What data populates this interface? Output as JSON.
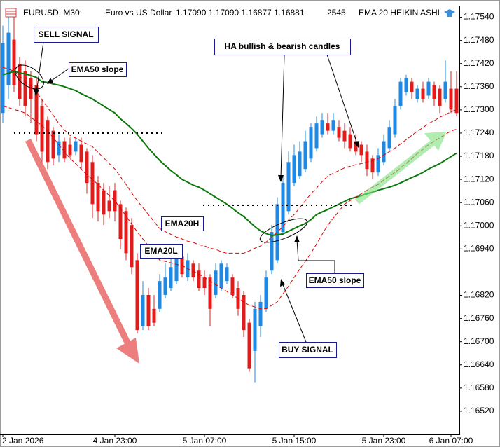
{
  "chart_data": {
    "type": "candlestick",
    "title": "EMA 20 HEIKIN ASHI",
    "symbol": "EURUSD, M30:",
    "description": "Euro vs US Dollar",
    "quote": "1.17090 1.17090 1.16877 1.16881",
    "bars": 2545,
    "up_color": "#1e88e5",
    "down_color": "#e31b1b",
    "grid": false,
    "ylim": [
      1.1646,
      1.1757
    ],
    "yticks": [
      {
        "value": 1.1754,
        "label": "1.17540"
      },
      {
        "value": 1.1748,
        "label": "1.17480"
      },
      {
        "value": 1.1742,
        "label": "1.17420"
      },
      {
        "value": 1.1736,
        "label": "1.17360"
      },
      {
        "value": 1.173,
        "label": "1.17300"
      },
      {
        "value": 1.1724,
        "label": "1.17240"
      },
      {
        "value": 1.1718,
        "label": "1.17180"
      },
      {
        "value": 1.1712,
        "label": "1.17120"
      },
      {
        "value": 1.1706,
        "label": "1.17060"
      },
      {
        "value": 1.17,
        "label": "1.17000"
      },
      {
        "value": 1.1694,
        "label": "1.16940"
      },
      {
        "value": 1.1682,
        "label": "1.16820"
      },
      {
        "value": 1.1676,
        "label": "1.16760"
      },
      {
        "value": 1.167,
        "label": "1.16700"
      },
      {
        "value": 1.1664,
        "label": "1.16640"
      },
      {
        "value": 1.1658,
        "label": "1.16580"
      },
      {
        "value": 1.1652,
        "label": "1.16520"
      }
    ],
    "categories": [
      "2 Jan 2026",
      null,
      null,
      null,
      null,
      null,
      null,
      null,
      null,
      null,
      null,
      null,
      null,
      null,
      null,
      null,
      null,
      null,
      null,
      null,
      "4 Jan 23:00",
      null,
      null,
      null,
      null,
      null,
      null,
      null,
      null,
      null,
      null,
      null,
      null,
      null,
      null,
      null,
      "5 Jan 07:00",
      null,
      null,
      null,
      null,
      null,
      null,
      null,
      null,
      null,
      null,
      null,
      null,
      null,
      null,
      null,
      "5 Jan 15:00",
      null,
      null,
      null,
      null,
      null,
      null,
      null,
      null,
      null,
      null,
      null,
      null,
      null,
      null,
      null,
      "5 Jan 23:00",
      null,
      null,
      null,
      null,
      null,
      null,
      null,
      null,
      null,
      null,
      null,
      "6 Jan 07:00",
      null
    ],
    "open": [
      1.17292,
      1.17364,
      1.17482,
      1.17419,
      1.174,
      1.17382,
      1.17364,
      1.1731,
      1.17274,
      1.17246,
      1.17183,
      1.17219,
      1.1721,
      1.17192,
      1.1721,
      1.17192,
      1.17165,
      1.17111,
      1.17092,
      1.17065,
      1.17092,
      1.17056,
      1.17038,
      1.17002,
      1.16911,
      1.1674,
      1.16821,
      1.16785,
      1.16785,
      1.16821,
      1.16839,
      1.16857,
      1.1692,
      1.16866,
      1.16902,
      1.16884,
      1.16866,
      1.16866,
      1.16821,
      1.16839,
      1.16857,
      1.16866,
      1.16839,
      1.16821,
      1.16749,
      1.16676,
      1.1674,
      1.16785,
      1.16884,
      1.16911,
      1.16984,
      1.17038,
      1.17111,
      1.17129,
      1.17147,
      1.17174,
      1.17201,
      1.17237,
      1.17265,
      1.17246,
      1.17256,
      1.17246,
      1.17237,
      1.17219,
      1.1721,
      1.17192,
      1.17174,
      1.17138,
      1.17165,
      1.17201,
      1.17237,
      1.1731,
      1.17346,
      1.17373,
      1.17328,
      1.17355,
      1.17337,
      1.17364,
      1.17355,
      1.17328,
      1.17355,
      1.17355
    ],
    "high": [
      1.17518,
      1.17554,
      1.17554,
      1.17437,
      1.17428,
      1.174,
      1.17382,
      1.17328,
      1.17283,
      1.17256,
      1.17237,
      1.17228,
      1.17228,
      1.17228,
      1.17228,
      1.17201,
      1.17183,
      1.17129,
      1.17111,
      1.17102,
      1.17111,
      1.17065,
      1.17047,
      1.1702,
      1.16929,
      1.16857,
      1.16839,
      1.16821,
      1.16875,
      1.16902,
      1.1692,
      1.16939,
      1.16929,
      1.16929,
      1.16911,
      1.16902,
      1.16884,
      1.16875,
      1.16902,
      1.16911,
      1.16902,
      1.16875,
      1.16857,
      1.1683,
      1.16758,
      1.16803,
      1.16821,
      1.16884,
      1.17002,
      1.17074,
      1.17129,
      1.17192,
      1.1721,
      1.17219,
      1.17246,
      1.17265,
      1.17283,
      1.17292,
      1.17292,
      1.17292,
      1.17274,
      1.17265,
      1.17256,
      1.17237,
      1.17219,
      1.1721,
      1.17183,
      1.17201,
      1.17237,
      1.17274,
      1.17328,
      1.17382,
      1.17391,
      1.17382,
      1.17364,
      1.17373,
      1.17382,
      1.17373,
      1.17364,
      1.17428,
      1.174,
      1.174
    ],
    "low": [
      1.17265,
      1.17328,
      1.17346,
      1.1731,
      1.17283,
      1.17265,
      1.17219,
      1.17165,
      1.17147,
      1.17156,
      1.17165,
      1.17165,
      1.17174,
      1.17183,
      1.17147,
      1.17083,
      1.1702,
      1.17011,
      1.17002,
      1.1702,
      1.17011,
      1.16939,
      1.16911,
      1.16875,
      1.16721,
      1.1673,
      1.1673,
      1.1674,
      1.16776,
      1.16812,
      1.1683,
      1.16848,
      1.16866,
      1.16857,
      1.16857,
      1.1683,
      1.16821,
      1.1674,
      1.16812,
      1.1683,
      1.16848,
      1.16812,
      1.16767,
      1.16712,
      1.16622,
      1.16595,
      1.16712,
      1.16776,
      1.16875,
      1.16902,
      1.16975,
      1.17029,
      1.17102,
      1.1712,
      1.17138,
      1.17165,
      1.17192,
      1.17228,
      1.17237,
      1.17237,
      1.17219,
      1.17201,
      1.17192,
      1.17183,
      1.17165,
      1.17129,
      1.1712,
      1.17129,
      1.17156,
      1.17192,
      1.17228,
      1.17301,
      1.17337,
      1.17328,
      1.17319,
      1.17319,
      1.17328,
      1.1731,
      1.17292,
      1.17319,
      1.17292,
      1.17283
    ],
    "close": [
      1.17473,
      1.175,
      1.17364,
      1.17328,
      1.1731,
      1.17328,
      1.17237,
      1.17192,
      1.17165,
      1.17174,
      1.17219,
      1.17174,
      1.17183,
      1.17219,
      1.17165,
      1.17111,
      1.17056,
      1.17038,
      1.17029,
      1.17038,
      1.17038,
      1.16966,
      1.16929,
      1.16893,
      1.1673,
      1.16821,
      1.1674,
      1.16749,
      1.16857,
      1.16866,
      1.16893,
      1.1692,
      1.16875,
      1.16911,
      1.16866,
      1.16839,
      1.16839,
      1.16785,
      1.16884,
      1.16902,
      1.16893,
      1.16821,
      1.16785,
      1.1673,
      1.16631,
      1.16785,
      1.16803,
      1.16866,
      1.16984,
      1.17056,
      1.17111,
      1.17165,
      1.17183,
      1.17192,
      1.17219,
      1.17256,
      1.17265,
      1.17274,
      1.17246,
      1.17274,
      1.17228,
      1.17219,
      1.17201,
      1.17192,
      1.17183,
      1.17147,
      1.17138,
      1.17183,
      1.17219,
      1.17256,
      1.1731,
      1.17373,
      1.17382,
      1.17346,
      1.17355,
      1.17328,
      1.17373,
      1.17328,
      1.1731,
      1.17373,
      1.17301,
      1.17292
    ],
    "series": [
      {
        "color": "#0a780a",
        "line_style": "solid",
        "values": [
          1.17391,
          1.17395,
          1.174,
          1.17396,
          1.17393,
          1.17389,
          1.17384,
          1.17373,
          1.17371,
          1.17367,
          1.17364,
          1.1736,
          1.17355,
          1.1735,
          1.17342,
          1.17335,
          1.17328,
          1.17319,
          1.1731,
          1.17301,
          1.17292,
          1.17277,
          1.17265,
          1.17252,
          1.17237,
          1.17219,
          1.17201,
          1.17185,
          1.17169,
          1.17156,
          1.17143,
          1.17132,
          1.1712,
          1.17113,
          1.17105,
          1.171,
          1.17092,
          1.17083,
          1.17074,
          1.17065,
          1.17056,
          1.17045,
          1.17034,
          1.17024,
          1.17011,
          1.16998,
          1.16987,
          1.1698,
          1.16975,
          1.16977,
          1.16979,
          1.16986,
          1.16993,
          1.17,
          1.17006,
          1.17016,
          1.17029,
          1.17036,
          1.17042,
          1.17049,
          1.17056,
          1.17063,
          1.1707,
          1.17074,
          1.17078,
          1.17083,
          1.17087,
          1.17092,
          1.17096,
          1.171,
          1.17105,
          1.17111,
          1.17118,
          1.17125,
          1.17131,
          1.17138,
          1.17147,
          1.17154,
          1.17161,
          1.1717,
          1.17179,
          1.17188
        ]
      },
      {
        "color": "#e00000",
        "line_style": "dashed",
        "values": [
          1.1741,
          1.17406,
          1.174,
          1.17388,
          1.17373,
          1.17361,
          1.17346,
          1.17326,
          1.17306,
          1.17286,
          1.17265,
          1.17248,
          1.17234,
          1.17227,
          1.17219,
          1.17212,
          1.17205,
          1.1719,
          1.17176,
          1.17161,
          1.17147,
          1.17127,
          1.17107,
          1.17085,
          1.17065,
          1.17047,
          1.17029,
          1.17011,
          1.16993,
          1.16985,
          1.16978,
          1.16971,
          1.16966,
          1.1696,
          1.16957,
          1.16951,
          1.16948,
          1.16942,
          1.16939,
          1.16933,
          1.16929,
          1.16929,
          1.16929,
          1.16929,
          1.16935,
          1.16942,
          1.16948,
          1.16958,
          1.16971,
          1.16984,
          1.16998,
          1.17015,
          1.17029,
          1.17047,
          1.17065,
          1.17083,
          1.17098,
          1.17114,
          1.17129,
          1.17136,
          1.17143,
          1.1715,
          1.17154,
          1.17158,
          1.17161,
          1.17165,
          1.17169,
          1.17174,
          1.17183,
          1.17192,
          1.17201,
          1.17212,
          1.17223,
          1.17234,
          1.17245,
          1.17254,
          1.17265,
          1.17272,
          1.17281,
          1.17288,
          1.17295,
          1.17301
        ]
      },
      {
        "color": "#e00000",
        "line_style": "dashed",
        "values": [
          1.1731,
          1.17306,
          1.17301,
          1.17297,
          1.17292,
          1.17281,
          1.1727,
          1.17259,
          1.17246,
          1.17228,
          1.1721,
          1.17192,
          1.17174,
          1.17161,
          1.17147,
          1.17132,
          1.1712,
          1.17107,
          1.17092,
          1.17078,
          1.17065,
          1.17045,
          1.17025,
          1.17005,
          1.16984,
          1.16966,
          1.16948,
          1.16929,
          1.16911,
          1.16908,
          1.16904,
          1.169,
          1.16897,
          1.16889,
          1.16882,
          1.16875,
          1.16866,
          1.16857,
          1.16848,
          1.16839,
          1.1683,
          1.16821,
          1.16812,
          1.16803,
          1.16794,
          1.1679,
          1.16785,
          1.16785,
          1.16794,
          1.16803,
          1.16824,
          1.16844,
          1.16866,
          1.16888,
          1.16908,
          1.16929,
          1.16953,
          1.16978,
          1.17002,
          1.1702,
          1.17038,
          1.17056,
          1.17065,
          1.17074,
          1.17083,
          1.17092,
          1.171,
          1.17107,
          1.17118,
          1.17129,
          1.17138,
          1.1715,
          1.17161,
          1.17174,
          1.17187,
          1.17198,
          1.1721,
          1.17219,
          1.17228,
          1.17237,
          1.17245,
          1.1725
        ]
      }
    ],
    "annotations": [
      "SELL SIGNAL",
      "EMA50 slope",
      "HA bullish & bearish candles",
      "EMA20H",
      "EMA20L",
      "EMA50 slope",
      "BUY SIGNAL"
    ]
  }
}
